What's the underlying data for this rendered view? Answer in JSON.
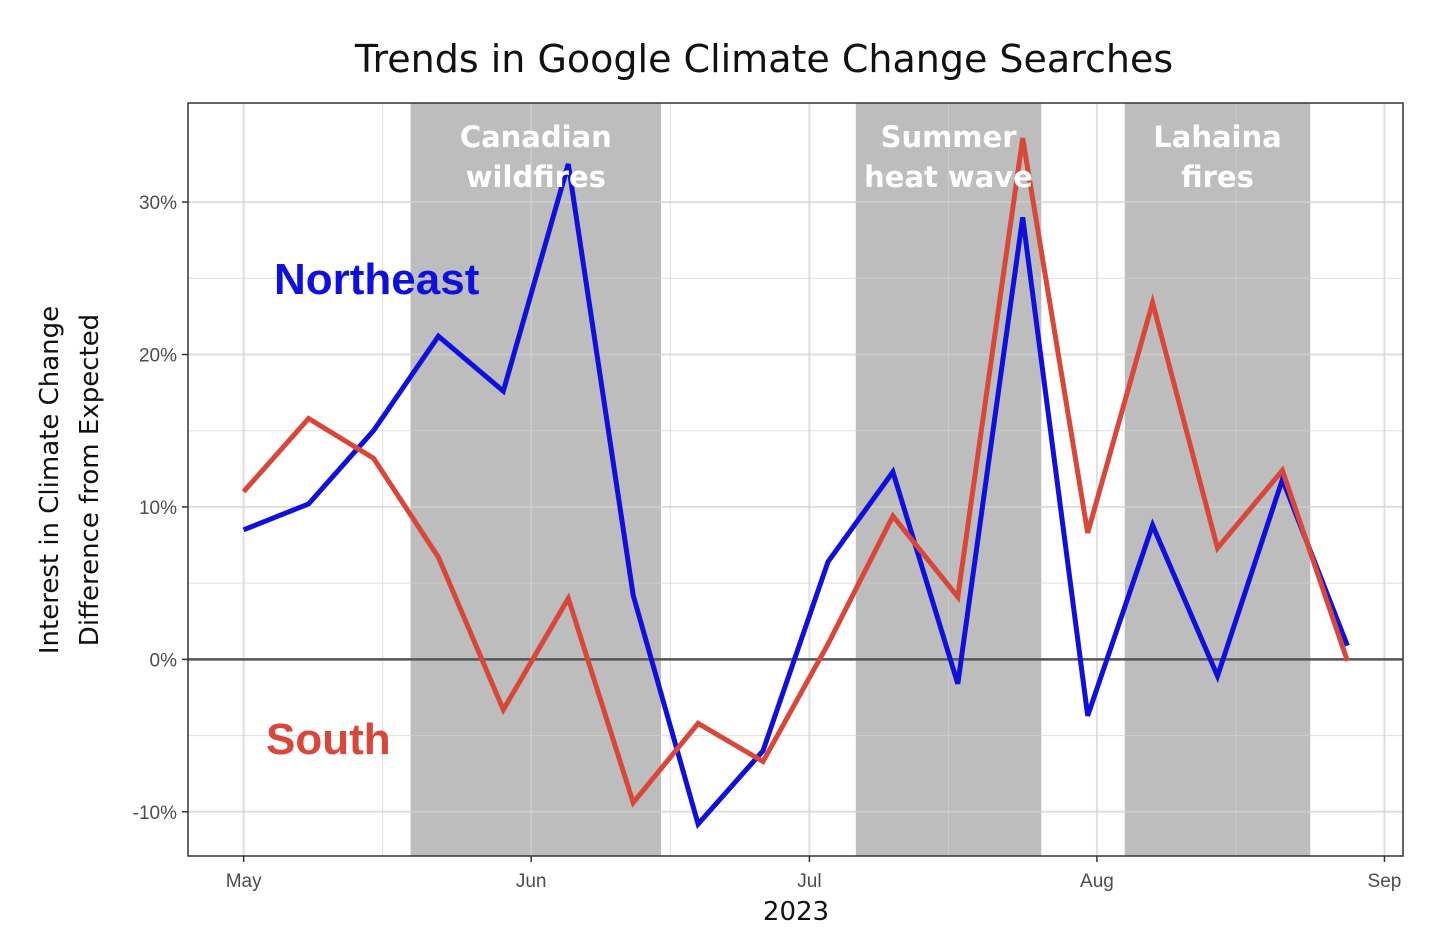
{
  "chart_data": {
    "type": "line",
    "title": "Trends in Google Climate Change Searches",
    "xlabel": "2023",
    "ylabel_lines": [
      "Interest in Climate Change",
      "Difference from Expected"
    ],
    "x_ticks": [
      {
        "date": "2023-05-01",
        "label": "May"
      },
      {
        "date": "2023-06-01",
        "label": "Jun"
      },
      {
        "date": "2023-07-01",
        "label": "Jul"
      },
      {
        "date": "2023-08-01",
        "label": "Aug"
      },
      {
        "date": "2023-09-01",
        "label": "Sep"
      }
    ],
    "y_ticks": [
      {
        "value": -10,
        "label": "-10%"
      },
      {
        "value": 0,
        "label": "0%"
      },
      {
        "value": 10,
        "label": "10%"
      },
      {
        "value": 20,
        "label": "20%"
      },
      {
        "value": 30,
        "label": "30%"
      }
    ],
    "xlim": [
      "2023-04-25",
      "2023-09-03"
    ],
    "ylim": [
      -12.9,
      36.5
    ],
    "grid": true,
    "reference_line": 0,
    "shaded_periods": [
      {
        "start": "2023-05-19",
        "end": "2023-06-15",
        "label_lines": [
          "Canadian",
          "wildfires"
        ]
      },
      {
        "start": "2023-07-06",
        "end": "2023-07-26",
        "label_lines": [
          "Summer",
          "heat wave"
        ]
      },
      {
        "start": "2023-08-04",
        "end": "2023-08-24",
        "label_lines": [
          "Lahaina",
          "fires"
        ]
      }
    ],
    "series": [
      {
        "name": "Northeast",
        "color": "#1010dd",
        "x": [
          "2023-05-01",
          "2023-05-08",
          "2023-05-15",
          "2023-05-22",
          "2023-05-29",
          "2023-06-05",
          "2023-06-12",
          "2023-06-19",
          "2023-06-26",
          "2023-07-03",
          "2023-07-10",
          "2023-07-17",
          "2023-07-24",
          "2023-07-31",
          "2023-08-07",
          "2023-08-14",
          "2023-08-21",
          "2023-08-28"
        ],
        "values": [
          8.5,
          10.2,
          15.0,
          21.2,
          17.6,
          32.5,
          4.2,
          -10.8,
          -6.0,
          6.4,
          12.3,
          -1.6,
          29.0,
          -3.7,
          8.8,
          -1.1,
          11.8,
          0.9
        ]
      },
      {
        "name": "South",
        "color": "#d9463a",
        "x": [
          "2023-05-01",
          "2023-05-08",
          "2023-05-15",
          "2023-05-22",
          "2023-05-29",
          "2023-06-05",
          "2023-06-12",
          "2023-06-19",
          "2023-06-26",
          "2023-07-03",
          "2023-07-10",
          "2023-07-17",
          "2023-07-24",
          "2023-07-31",
          "2023-08-07",
          "2023-08-14",
          "2023-08-21",
          "2023-08-28"
        ],
        "values": [
          11.0,
          15.8,
          13.2,
          6.7,
          -3.3,
          4.0,
          -9.4,
          -4.2,
          -6.7,
          1.0,
          9.4,
          4.1,
          34.2,
          8.3,
          23.4,
          7.3,
          12.4,
          -0.1
        ]
      }
    ]
  }
}
